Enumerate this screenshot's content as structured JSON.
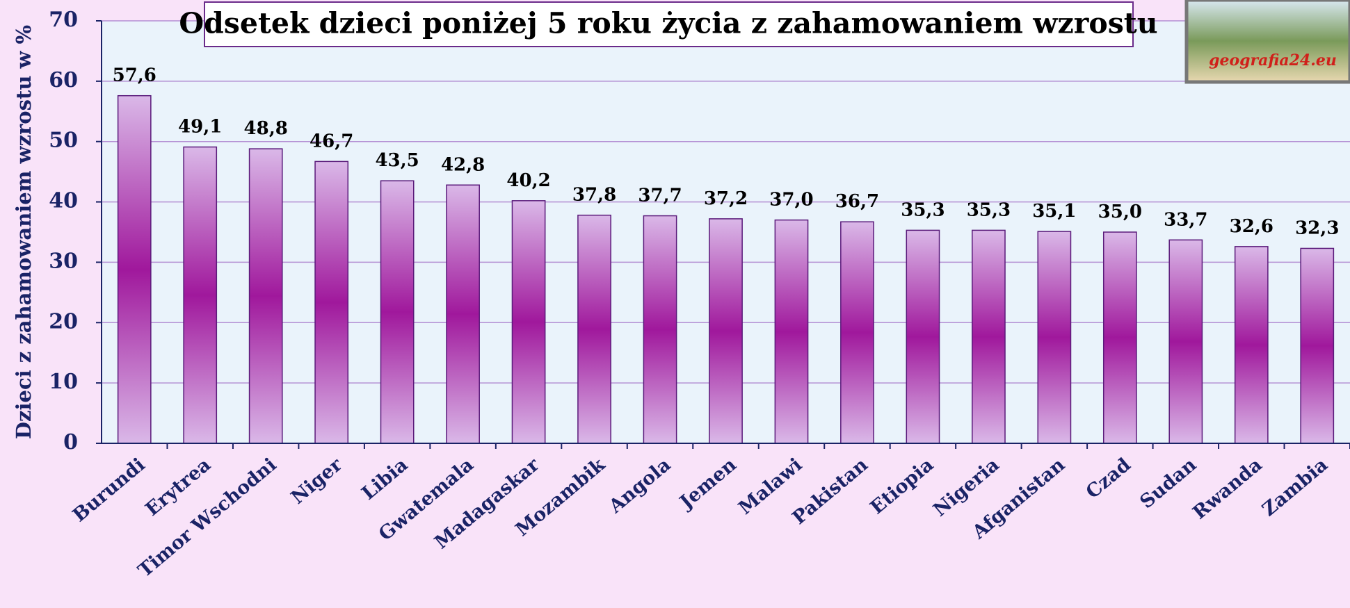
{
  "chart_data": {
    "type": "bar",
    "title": "Odsetek dzieci poniżej 5 roku życia z zahamowaniem wzrostu",
    "y_label": "Dzieci z zahamowaniem wzrostu w %",
    "logo_text": "geografia24.eu",
    "categories": [
      "Burundi",
      "Erytrea",
      "Timor Wschodni",
      "Niger",
      "Libia",
      "Gwatemala",
      "Madagaskar",
      "Mozambik",
      "Angola",
      "Jemen",
      "Malawi",
      "Pakistan",
      "Etiopia",
      "Nigeria",
      "Afganistan",
      "Czad",
      "Sudan",
      "Rwanda",
      "Zambia"
    ],
    "values": [
      57.6,
      49.1,
      48.8,
      46.7,
      43.5,
      42.8,
      40.2,
      37.8,
      37.7,
      37.2,
      37.0,
      36.7,
      35.3,
      35.3,
      35.1,
      35.0,
      33.7,
      32.6,
      32.3
    ],
    "value_labels": [
      "57,6",
      "49,1",
      "48,8",
      "46,7",
      "43,5",
      "42,8",
      "40,2",
      "37,8",
      "37,7",
      "37,2",
      "37,0",
      "36,7",
      "35,3",
      "35,3",
      "35,1",
      "35,0",
      "33,7",
      "32,6",
      "32,3"
    ],
    "color": "#a0189c",
    "ylim": [
      0,
      70
    ],
    "yticks": [
      0,
      10,
      20,
      30,
      40,
      50,
      60,
      70
    ],
    "grid": true
  }
}
